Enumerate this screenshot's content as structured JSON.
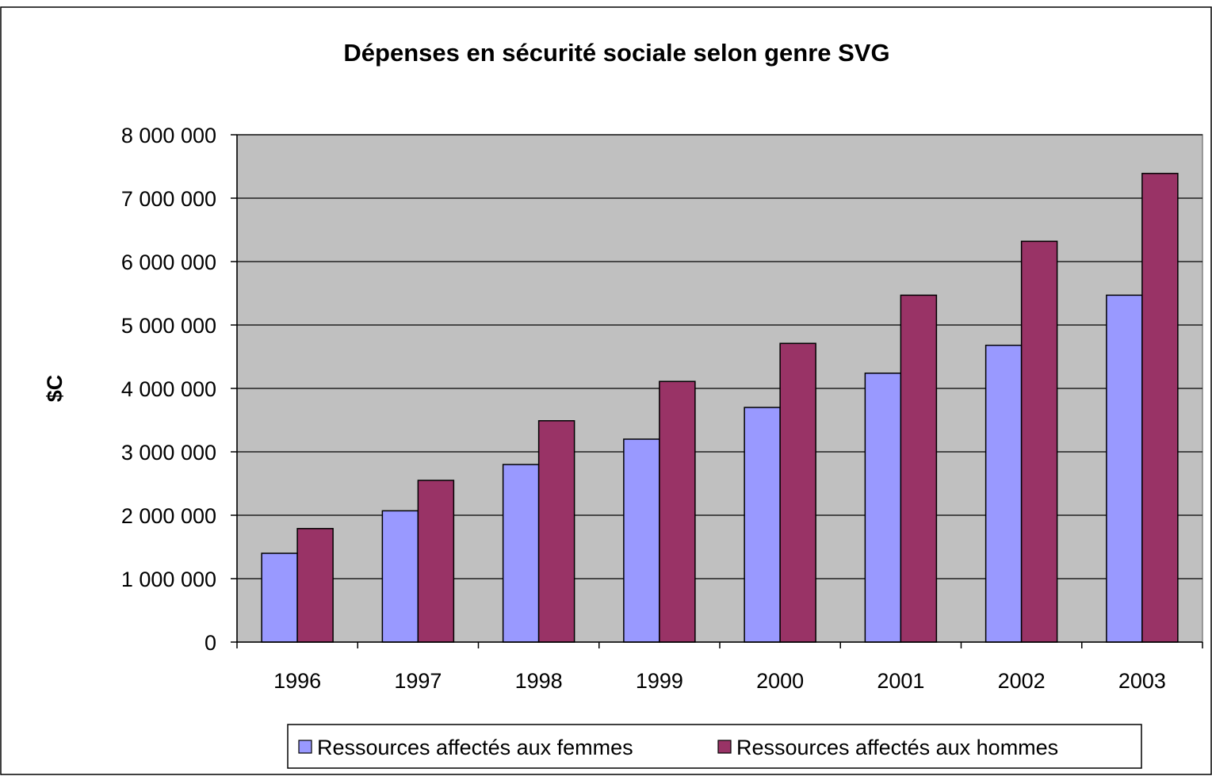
{
  "chart_data": {
    "type": "bar",
    "title": "Dépenses en sécurité sociale selon genre SVG",
    "ylabel": "$C",
    "xlabel": "",
    "categories": [
      "1996",
      "1997",
      "1998",
      "1999",
      "2000",
      "2001",
      "2002",
      "2003"
    ],
    "series": [
      {
        "name": "Ressources affectés aux femmes",
        "color": "#9999ff",
        "values": [
          1400000,
          2070000,
          2800000,
          3200000,
          3700000,
          4240000,
          4680000,
          5470000
        ]
      },
      {
        "name": "Ressources affectés aux hommes",
        "color": "#993366",
        "values": [
          1790000,
          2550000,
          3490000,
          4110000,
          4710000,
          5470000,
          6320000,
          7390000
        ]
      }
    ],
    "ylim": [
      0,
      8000000
    ],
    "yticks": [
      "0",
      "1 000 000",
      "2 000 000",
      "3 000 000",
      "4 000 000",
      "5 000 000",
      "6 000 000",
      "7 000 000",
      "8 000 000"
    ],
    "grid": true,
    "plot_background": "#c0c0c0",
    "legend_position": "bottom"
  }
}
